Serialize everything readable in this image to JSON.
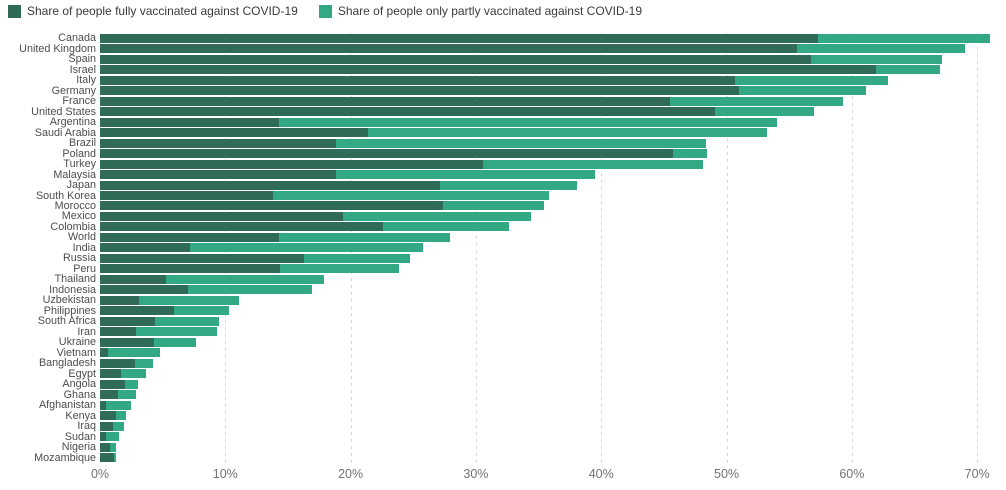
{
  "colors": {
    "fully": "#2f6b56",
    "partly": "#32a884",
    "gridline": "#d7d7d7",
    "country_label": "#4d4d4d",
    "axis_label": "#737373",
    "legend_text": "#3a3a3a",
    "background": "#ffffff"
  },
  "legend": {
    "items": [
      {
        "label": "Share of people fully vaccinated against COVID-19",
        "color": "#2f6b56"
      },
      {
        "label": "Share of people only partly vaccinated against COVID-19",
        "color": "#32a884"
      }
    ]
  },
  "chart_data": {
    "type": "bar",
    "orientation": "horizontal",
    "stacked": true,
    "title": "",
    "xlabel": "",
    "ylabel": "",
    "grid": "dashed-vertical",
    "legend_position": "top-left",
    "xlim": [
      0,
      72.3
    ],
    "x_tick_values": [
      0,
      10,
      20,
      30,
      40,
      50,
      60,
      70
    ],
    "x_tick_labels": [
      "0%",
      "10%",
      "20%",
      "30%",
      "40%",
      "50%",
      "60%",
      "70%"
    ],
    "categories": [
      "Canada",
      "United Kingdom",
      "Spain",
      "Israel",
      "Italy",
      "Germany",
      "France",
      "United States",
      "Argentina",
      "Saudi Arabia",
      "Brazil",
      "Poland",
      "Turkey",
      "Malaysia",
      "Japan",
      "South Korea",
      "Morocco",
      "Mexico",
      "Colombia",
      "World",
      "India",
      "Russia",
      "Peru",
      "Thailand",
      "Indonesia",
      "Uzbekistan",
      "Philippines",
      "South Africa",
      "Iran",
      "Ukraine",
      "Vietnam",
      "Bangladesh",
      "Egypt",
      "Angola",
      "Ghana",
      "Afghanistan",
      "Kenya",
      "Iraq",
      "Sudan",
      "Nigeria",
      "Mozambique"
    ],
    "series": [
      {
        "name": "Share of people fully vaccinated against COVID-19",
        "color": "#2f6b56",
        "values": [
          57.3,
          55.6,
          56.7,
          61.9,
          50.7,
          51.0,
          45.5,
          49.1,
          14.3,
          21.4,
          18.8,
          45.7,
          30.6,
          18.8,
          27.1,
          13.8,
          27.4,
          19.4,
          22.6,
          14.3,
          7.2,
          16.3,
          14.4,
          5.3,
          7.0,
          3.1,
          5.9,
          4.4,
          2.9,
          4.3,
          0.6,
          2.8,
          1.7,
          2.0,
          1.4,
          0.5,
          1.3,
          1.0,
          0.5,
          0.8,
          1.1
        ]
      },
      {
        "name": "Share of people only partly vaccinated against COVID-19",
        "color": "#32a884",
        "values": [
          13.7,
          13.4,
          10.5,
          5.1,
          12.2,
          10.1,
          13.8,
          7.9,
          39.7,
          31.8,
          29.6,
          2.7,
          17.5,
          20.7,
          11.0,
          22.0,
          8.0,
          15.0,
          10.0,
          13.6,
          18.6,
          8.4,
          9.5,
          12.6,
          9.9,
          8.0,
          4.4,
          5.1,
          6.4,
          3.4,
          4.2,
          1.4,
          2.0,
          1.0,
          1.5,
          2.0,
          0.8,
          0.9,
          1.0,
          0.5,
          0.2
        ]
      }
    ]
  }
}
